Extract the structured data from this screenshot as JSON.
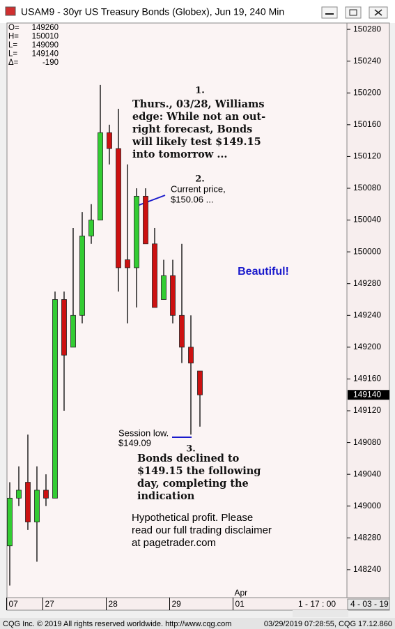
{
  "window_title": "USAM9 - 30yr US Treasury Bonds (Globex), Jun 19, 240 Min",
  "chart_data": {
    "type": "candlestick",
    "info_box": [
      {
        "key": "O=",
        "value": "149260"
      },
      {
        "key": "H=",
        "value": "150010"
      },
      {
        "key": "L=",
        "value": "149090"
      },
      {
        "key": "L=",
        "value": "149140"
      },
      {
        "key": "Δ=",
        "value": "-190"
      }
    ],
    "categories": [
      "07",
      null,
      null,
      null,
      "27",
      null,
      null,
      null,
      null,
      null,
      null,
      "28",
      null,
      null,
      null,
      null,
      null,
      null,
      "29",
      null,
      null,
      null,
      null,
      null,
      null,
      "01"
    ],
    "secondary_categories": [
      null,
      null,
      null,
      null,
      null,
      null,
      null,
      null,
      null,
      null,
      null,
      null,
      null,
      null,
      null,
      null,
      null,
      null,
      null,
      null,
      null,
      null,
      null,
      null,
      null,
      "Apr"
    ],
    "open": [
      148.84375,
      149.03125,
      149.09375,
      148.9375,
      149.0625,
      149.03125,
      149.8125,
      149.625,
      149.75,
      150.0625,
      150.125,
      150.46875,
      150.40625,
      149.96875,
      149.9375,
      150.21875,
      150.03125,
      149.8125,
      149.90625,
      149.75,
      149.625,
      149.53125,
      null,
      null,
      null,
      null
    ],
    "high": [
      149.09375,
      149.15625,
      149.28125,
      149.15625,
      149.125,
      149.84375,
      149.84375,
      150.09375,
      150.15625,
      150.1875,
      150.65625,
      150.5,
      150.5625,
      150.34375,
      150.25,
      150.25,
      150.09375,
      149.96875,
      149.96875,
      150.03125,
      149.75,
      149.53125,
      null,
      null,
      null,
      null
    ],
    "low": [
      148.6875,
      149.0,
      148.90625,
      148.78125,
      149.0,
      149.03125,
      149.375,
      149.625,
      149.71875,
      150.03125,
      150.125,
      150.34375,
      149.84375,
      149.71875,
      149.78125,
      150.03125,
      149.78125,
      149.8125,
      149.71875,
      149.5625,
      149.28125,
      149.3125,
      null,
      null,
      null,
      null
    ],
    "close": [
      149.03125,
      149.0625,
      148.9375,
      149.0625,
      149.03125,
      149.8125,
      149.59375,
      149.75,
      150.0625,
      150.125,
      150.46875,
      150.40625,
      149.9375,
      149.9375,
      150.21875,
      150.03125,
      149.78125,
      149.90625,
      149.75,
      149.625,
      149.5625,
      149.4375,
      null,
      null,
      null,
      null
    ],
    "up_color": "#33cc33",
    "down_color": "#cc1111",
    "ylim": [
      148.64,
      150.9
    ],
    "yticks": [
      {
        "value": 150.875,
        "label": "150280"
      },
      {
        "value": 150.75,
        "label": "150240"
      },
      {
        "value": 150.625,
        "label": "150200"
      },
      {
        "value": 150.5,
        "label": "150160"
      },
      {
        "value": 150.375,
        "label": "150120"
      },
      {
        "value": 150.25,
        "label": "150080"
      },
      {
        "value": 150.125,
        "label": "150040"
      },
      {
        "value": 150.0,
        "label": "150000"
      },
      {
        "value": 149.875,
        "label": "149280"
      },
      {
        "value": 149.75,
        "label": "149240"
      },
      {
        "value": 149.625,
        "label": "149200"
      },
      {
        "value": 149.5,
        "label": "149160"
      },
      {
        "value": 149.375,
        "label": "149120"
      },
      {
        "value": 149.25,
        "label": "149080"
      },
      {
        "value": 149.125,
        "label": "149040"
      },
      {
        "value": 149.0,
        "label": "149000"
      },
      {
        "value": 148.875,
        "label": "148280"
      },
      {
        "value": 148.75,
        "label": "148240"
      }
    ],
    "last_price": {
      "value": 149.4375,
      "label": "149140"
    },
    "annotations": [
      {
        "number": "1.",
        "lines": [
          "Thurs., 03/28, Williams",
          "edge: While not an out-",
          "right forecast, Bonds",
          "will likely test $149.15",
          "into tomorrow ..."
        ]
      },
      {
        "number": "2.",
        "lines": [
          "Current price,",
          "$150.06 ..."
        ]
      },
      {
        "lines": [
          "Beautiful!"
        ]
      },
      {
        "lines": [
          "Session low.",
          "$149.09"
        ]
      },
      {
        "number": "3.",
        "lines": [
          "Bonds declined to",
          "$149.15 the following",
          "day, completing the",
          "indication"
        ]
      },
      {
        "lines": [
          "Hypothetical profit.  Please",
          "read our full trading disclaimer",
          "at pagetrader.com"
        ]
      }
    ]
  },
  "status": {
    "time": "1 - 17 : 00",
    "date": "4 - 03 - 19"
  },
  "footer": {
    "left": "CQG Inc. © 2019 All rights reserved worldwide. http://www.cqg.com",
    "right": "03/29/2019 07:28:55, CQG 17.12.860"
  }
}
